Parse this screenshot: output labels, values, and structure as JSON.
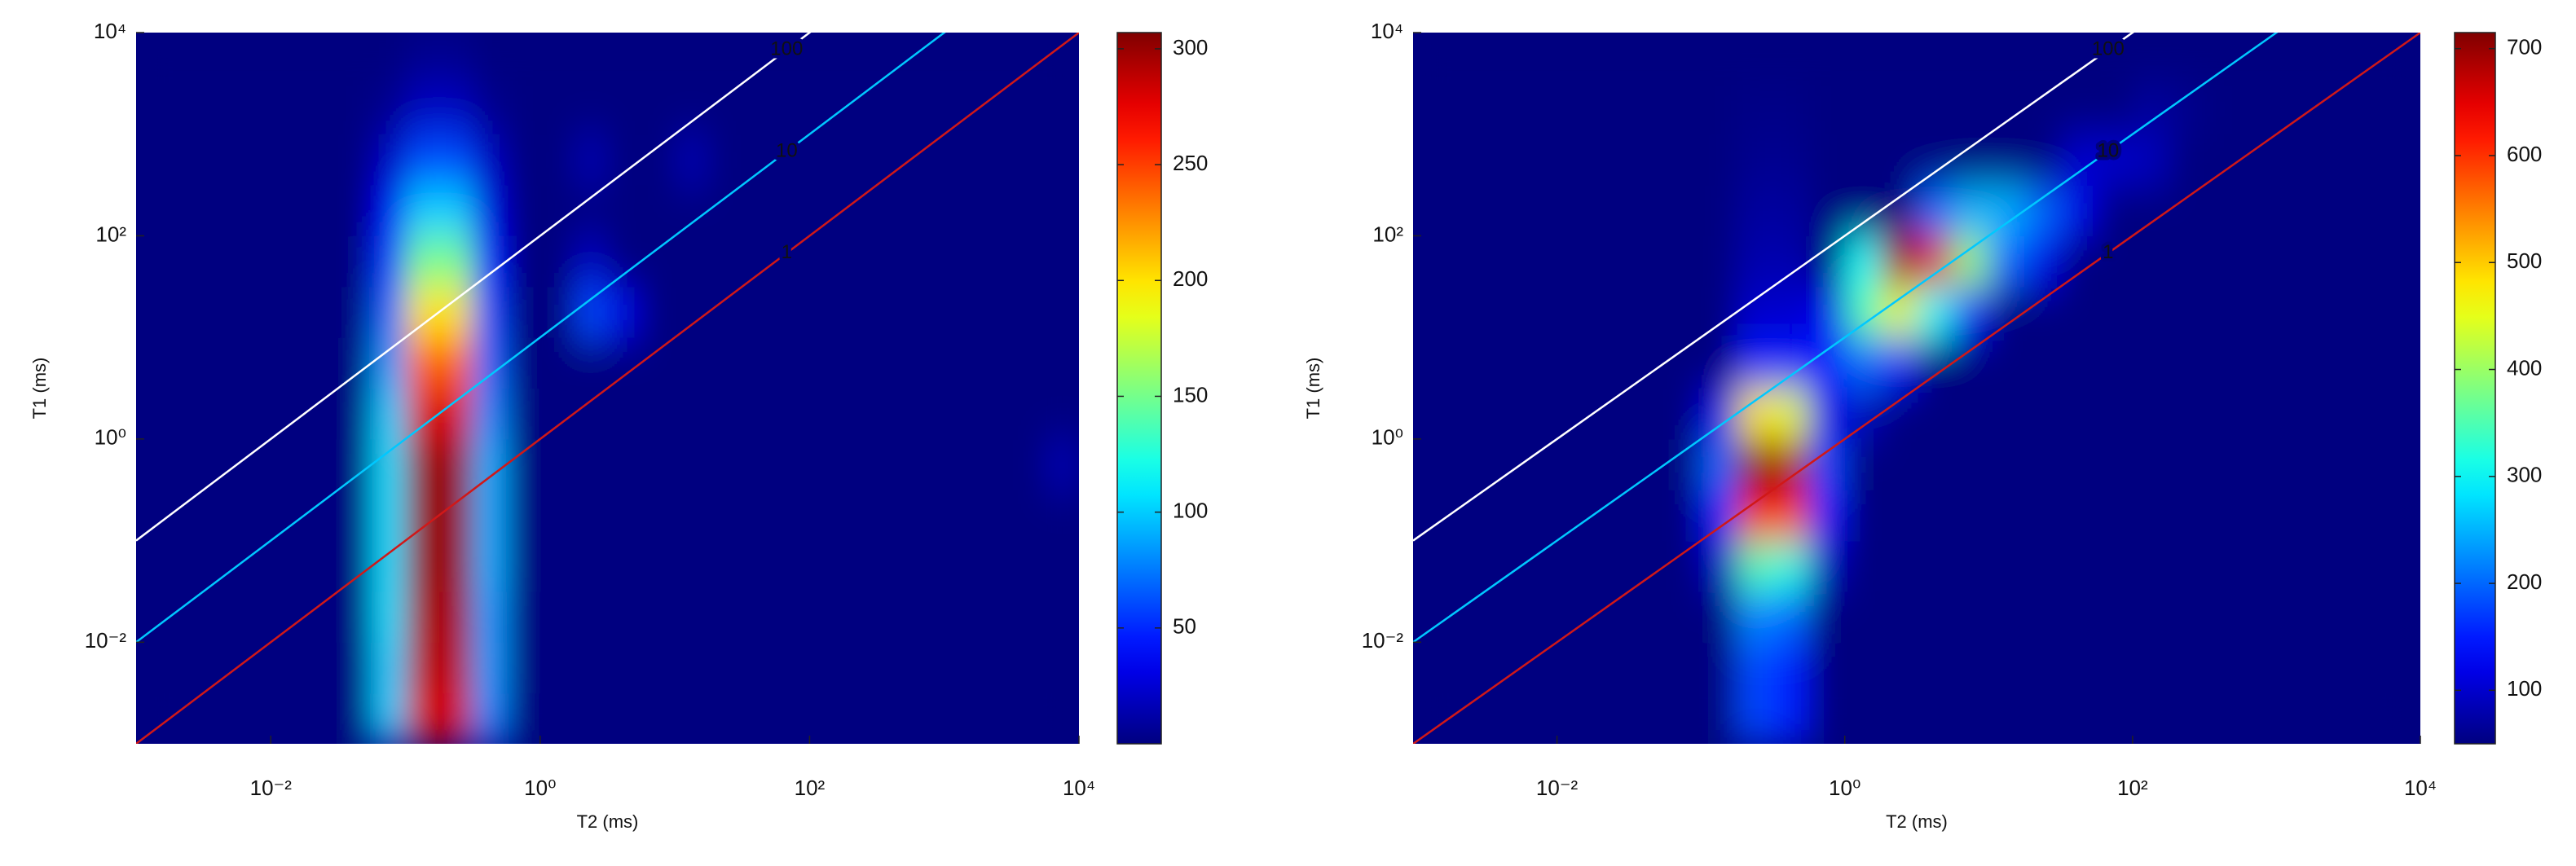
{
  "chart_data": [
    {
      "type": "heatmap",
      "xlabel": "T2 (ms)",
      "ylabel": "T1 (ms)",
      "xscale": "log",
      "yscale": "log",
      "colormap": "jet",
      "xlim": [
        0.001,
        10000
      ],
      "ylim": [
        0.001,
        10000
      ],
      "xticks": [
        {
          "value": 0.01,
          "label": "10⁻²"
        },
        {
          "value": 1,
          "label": "10⁰"
        },
        {
          "value": 100,
          "label": "10²"
        },
        {
          "value": 10000,
          "label": "10⁴"
        }
      ],
      "yticks": [
        {
          "value": 0.01,
          "label": "10⁻²"
        },
        {
          "value": 1,
          "label": "10⁰"
        },
        {
          "value": 100,
          "label": "10²"
        },
        {
          "value": 10000,
          "label": "10⁴"
        }
      ],
      "xbins": [
        0.001,
        0.00178,
        0.00316,
        0.00562,
        0.01,
        0.0178,
        0.0316,
        0.0562,
        0.1,
        0.178,
        0.316,
        0.562,
        1,
        1.78,
        3.16,
        5.62,
        10,
        17.8,
        31.6,
        56.2,
        100,
        178,
        316,
        562,
        1000,
        1780,
        3160,
        5620,
        10000
      ],
      "ybins": [
        0.001,
        0.00316,
        0.01,
        0.0316,
        0.1,
        0.316,
        1,
        3.16,
        10,
        31.6,
        100,
        316,
        1000,
        3160,
        10000
      ],
      "z": [
        [
          0,
          0,
          0,
          0,
          0,
          0,
          0,
          100,
          280,
          280,
          80,
          0,
          0,
          0,
          0,
          0,
          0,
          0,
          0,
          0,
          0,
          0,
          0,
          0,
          0,
          0,
          0,
          0
        ],
        [
          0,
          0,
          0,
          0,
          0,
          0,
          0,
          100,
          290,
          290,
          85,
          0,
          0,
          0,
          0,
          0,
          0,
          0,
          0,
          0,
          0,
          0,
          0,
          0,
          0,
          0,
          0,
          0
        ],
        [
          0,
          0,
          0,
          0,
          0,
          0,
          0,
          105,
          295,
          295,
          85,
          0,
          0,
          0,
          0,
          0,
          0,
          0,
          0,
          0,
          0,
          0,
          0,
          0,
          0,
          0,
          0,
          0
        ],
        [
          0,
          0,
          0,
          0,
          0,
          0,
          0,
          105,
          300,
          300,
          90,
          0,
          0,
          0,
          0,
          0,
          0,
          0,
          0,
          0,
          0,
          0,
          0,
          0,
          0,
          0,
          0,
          0
        ],
        [
          0,
          0,
          0,
          0,
          0,
          0,
          0,
          105,
          300,
          300,
          90,
          0,
          0,
          0,
          0,
          0,
          0,
          0,
          0,
          0,
          0,
          0,
          0,
          0,
          0,
          0,
          0,
          0
        ],
        [
          0,
          0,
          0,
          0,
          0,
          0,
          0,
          105,
          300,
          300,
          90,
          0,
          0,
          0,
          0,
          0,
          0,
          0,
          0,
          0,
          0,
          0,
          0,
          0,
          0,
          0,
          0,
          15
        ],
        [
          0,
          0,
          0,
          0,
          0,
          0,
          0,
          100,
          280,
          280,
          80,
          0,
          0,
          0,
          0,
          0,
          0,
          0,
          0,
          0,
          0,
          0,
          0,
          0,
          0,
          0,
          0,
          0
        ],
        [
          0,
          0,
          0,
          0,
          0,
          0,
          0,
          85,
          240,
          240,
          70,
          0,
          0,
          0,
          0,
          0,
          0,
          0,
          0,
          0,
          0,
          0,
          0,
          0,
          0,
          0,
          0,
          0
        ],
        [
          0,
          0,
          0,
          0,
          0,
          0,
          0,
          70,
          200,
          200,
          60,
          0,
          0,
          60,
          30,
          0,
          0,
          0,
          0,
          0,
          0,
          0,
          0,
          0,
          0,
          0,
          0,
          0
        ],
        [
          0,
          0,
          0,
          0,
          0,
          0,
          0,
          55,
          150,
          150,
          45,
          0,
          0,
          20,
          0,
          0,
          0,
          0,
          0,
          0,
          0,
          0,
          0,
          0,
          0,
          0,
          0,
          0
        ],
        [
          0,
          0,
          0,
          0,
          0,
          0,
          0,
          35,
          100,
          100,
          30,
          0,
          0,
          0,
          0,
          0,
          0,
          0,
          0,
          0,
          0,
          0,
          0,
          0,
          0,
          0,
          0,
          0
        ],
        [
          0,
          0,
          0,
          0,
          0,
          0,
          0,
          20,
          60,
          60,
          20,
          0,
          0,
          15,
          0,
          0,
          15,
          0,
          0,
          0,
          0,
          0,
          0,
          0,
          0,
          0,
          0,
          0
        ],
        [
          0,
          0,
          0,
          0,
          0,
          0,
          0,
          5,
          20,
          20,
          5,
          0,
          0,
          0,
          0,
          0,
          0,
          0,
          0,
          0,
          0,
          0,
          0,
          0,
          0,
          0,
          0,
          0
        ],
        [
          0,
          0,
          0,
          0,
          0,
          0,
          0,
          0,
          5,
          5,
          0,
          0,
          0,
          0,
          0,
          0,
          0,
          0,
          0,
          0,
          0,
          0,
          0,
          0,
          0,
          0,
          0,
          0
        ]
      ],
      "clim": [
        0,
        307
      ],
      "cticks": [
        50,
        100,
        150,
        200,
        250,
        300
      ],
      "ratio_lines": [
        {
          "value": 100,
          "color": "#ffffff"
        },
        {
          "value": 10,
          "color": "#00c8ff"
        },
        {
          "value": 1,
          "color": "#d01818"
        }
      ]
    },
    {
      "type": "heatmap",
      "xlabel": "T2 (ms)",
      "ylabel": "T1 (ms)",
      "xscale": "log",
      "yscale": "log",
      "colormap": "jet",
      "xlim": [
        0.001,
        10000
      ],
      "ylim": [
        0.001,
        10000
      ],
      "xticks": [
        {
          "value": 0.01,
          "label": "10⁻²"
        },
        {
          "value": 1,
          "label": "10⁰"
        },
        {
          "value": 100,
          "label": "10²"
        },
        {
          "value": 10000,
          "label": "10⁴"
        }
      ],
      "yticks": [
        {
          "value": 0.01,
          "label": "10⁻²"
        },
        {
          "value": 1,
          "label": "10⁰"
        },
        {
          "value": 100,
          "label": "10²"
        },
        {
          "value": 10000,
          "label": "10⁴"
        }
      ],
      "xbins": [
        0.001,
        0.00178,
        0.00316,
        0.00562,
        0.01,
        0.0178,
        0.0316,
        0.0562,
        0.1,
        0.178,
        0.316,
        0.562,
        1,
        1.78,
        3.16,
        5.62,
        10,
        17.8,
        31.6,
        56.2,
        100,
        178,
        316,
        562,
        1000,
        1780,
        3160,
        5620,
        10000
      ],
      "ybins": [
        0.001,
        0.00316,
        0.01,
        0.0316,
        0.1,
        0.316,
        1,
        3.16,
        10,
        31.6,
        100,
        316,
        1000,
        3160,
        10000
      ],
      "z": [
        [
          50,
          50,
          50,
          50,
          50,
          50,
          50,
          50,
          50,
          180,
          150,
          50,
          50,
          50,
          50,
          50,
          50,
          50,
          50,
          50,
          50,
          50,
          50,
          50,
          50,
          50,
          50,
          50
        ],
        [
          50,
          50,
          50,
          50,
          50,
          50,
          50,
          50,
          50,
          180,
          150,
          50,
          50,
          50,
          50,
          50,
          50,
          50,
          50,
          50,
          50,
          50,
          50,
          50,
          50,
          50,
          50,
          50
        ],
        [
          50,
          50,
          50,
          50,
          50,
          50,
          50,
          50,
          50,
          220,
          200,
          50,
          50,
          50,
          50,
          50,
          50,
          50,
          50,
          50,
          50,
          50,
          50,
          50,
          50,
          50,
          50,
          50
        ],
        [
          50,
          50,
          50,
          50,
          50,
          50,
          50,
          50,
          90,
          350,
          320,
          90,
          50,
          50,
          50,
          50,
          50,
          50,
          50,
          50,
          50,
          50,
          50,
          50,
          50,
          50,
          50,
          50
        ],
        [
          50,
          50,
          50,
          50,
          50,
          50,
          50,
          50,
          150,
          620,
          600,
          150,
          50,
          50,
          50,
          50,
          50,
          50,
          50,
          50,
          50,
          50,
          50,
          50,
          50,
          50,
          50,
          50
        ],
        [
          50,
          50,
          50,
          50,
          50,
          50,
          50,
          50,
          200,
          715,
          690,
          180,
          50,
          50,
          50,
          50,
          50,
          50,
          50,
          50,
          50,
          50,
          50,
          50,
          50,
          50,
          50,
          50
        ],
        [
          50,
          50,
          50,
          50,
          50,
          50,
          50,
          50,
          120,
          480,
          450,
          120,
          90,
          50,
          50,
          50,
          50,
          50,
          50,
          50,
          50,
          50,
          50,
          50,
          50,
          50,
          50,
          50
        ],
        [
          50,
          50,
          50,
          50,
          50,
          50,
          50,
          50,
          50,
          150,
          140,
          150,
          200,
          150,
          50,
          50,
          50,
          50,
          50,
          50,
          50,
          50,
          50,
          50,
          50,
          50,
          50,
          50
        ],
        [
          50,
          50,
          50,
          50,
          50,
          50,
          50,
          50,
          50,
          100,
          100,
          120,
          350,
          450,
          300,
          150,
          50,
          50,
          50,
          50,
          50,
          50,
          50,
          50,
          50,
          50,
          50,
          50
        ],
        [
          50,
          50,
          50,
          50,
          50,
          50,
          50,
          50,
          50,
          80,
          80,
          50,
          300,
          690,
          650,
          400,
          200,
          120,
          50,
          50,
          50,
          50,
          50,
          50,
          50,
          50,
          50,
          50
        ],
        [
          50,
          50,
          50,
          50,
          50,
          50,
          50,
          50,
          50,
          70,
          70,
          50,
          50,
          50,
          200,
          250,
          250,
          200,
          120,
          50,
          50,
          50,
          50,
          50,
          50,
          50,
          50,
          50
        ],
        [
          50,
          50,
          50,
          50,
          50,
          50,
          50,
          50,
          50,
          60,
          60,
          50,
          50,
          50,
          50,
          50,
          50,
          50,
          100,
          100,
          90,
          50,
          50,
          50,
          50,
          50,
          50,
          50
        ],
        [
          50,
          50,
          50,
          50,
          50,
          50,
          50,
          50,
          50,
          55,
          55,
          50,
          50,
          50,
          50,
          50,
          50,
          50,
          50,
          50,
          70,
          60,
          50,
          50,
          50,
          50,
          50,
          50
        ],
        [
          50,
          50,
          50,
          50,
          50,
          50,
          50,
          50,
          50,
          50,
          50,
          50,
          50,
          50,
          50,
          50,
          50,
          50,
          50,
          50,
          50,
          50,
          50,
          50,
          50,
          50,
          50,
          50
        ]
      ],
      "clim": [
        50,
        715
      ],
      "cticks": [
        100,
        200,
        300,
        400,
        500,
        600,
        700
      ],
      "ratio_lines": [
        {
          "value": 100,
          "color": "#ffffff"
        },
        {
          "value": 10,
          "color": "#00c8ff"
        },
        {
          "value": 1,
          "color": "#d01818"
        }
      ]
    }
  ]
}
